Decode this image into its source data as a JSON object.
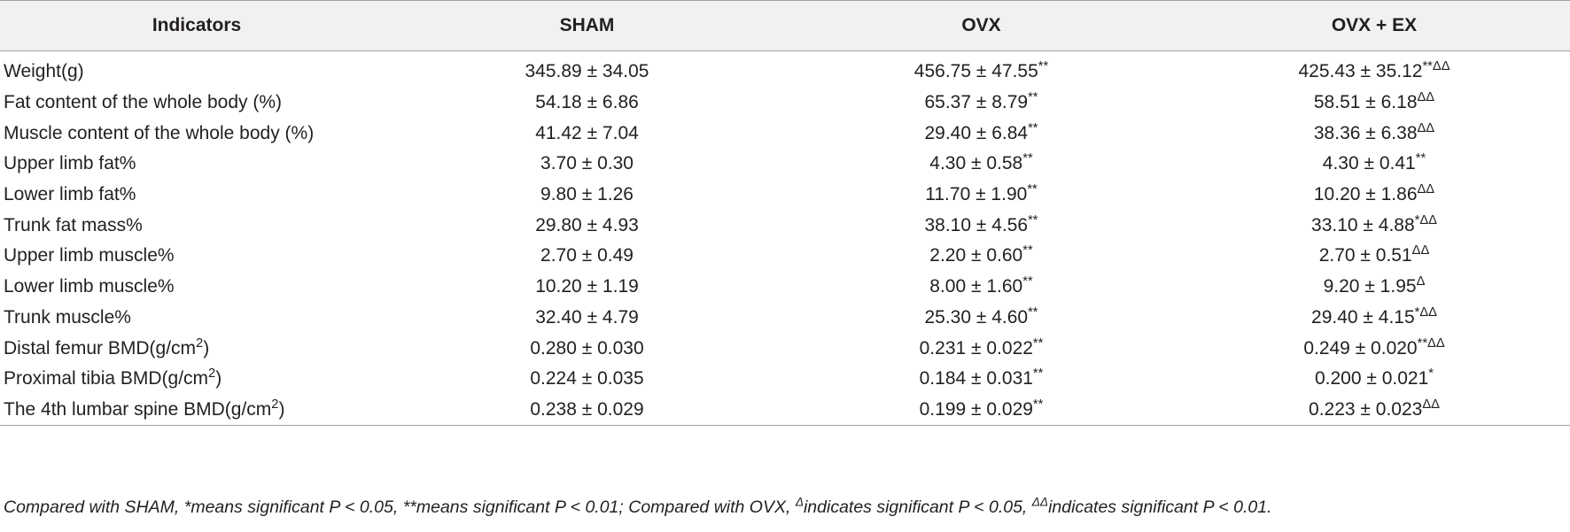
{
  "table": {
    "headers": [
      "Indicators",
      "SHAM",
      "OVX",
      "OVX + EX"
    ],
    "rows": [
      {
        "indicator": "Weight(g)",
        "indicator_sup": "",
        "sham": "345.89 ± 34.05",
        "sham_sup": "",
        "ovx": "456.75 ± 47.55",
        "ovx_sup": "**",
        "ovxex": "425.43 ± 35.12",
        "ovxex_sup": "**ΔΔ"
      },
      {
        "indicator": "Fat content of the whole body (%)",
        "indicator_sup": "",
        "sham": "54.18 ± 6.86",
        "sham_sup": "",
        "ovx": "65.37 ± 8.79",
        "ovx_sup": "**",
        "ovxex": "58.51 ± 6.18",
        "ovxex_sup": "ΔΔ"
      },
      {
        "indicator": "Muscle content of the whole body (%)",
        "indicator_sup": "",
        "sham": "41.42 ± 7.04",
        "sham_sup": "",
        "ovx": "29.40 ± 6.84",
        "ovx_sup": "**",
        "ovxex": "38.36 ± 6.38",
        "ovxex_sup": "ΔΔ"
      },
      {
        "indicator": "Upper limb fat%",
        "indicator_sup": "",
        "sham": "3.70 ± 0.30",
        "sham_sup": "",
        "ovx": "4.30 ± 0.58",
        "ovx_sup": "**",
        "ovxex": "4.30 ± 0.41",
        "ovxex_sup": "**"
      },
      {
        "indicator": "Lower limb fat%",
        "indicator_sup": "",
        "sham": "9.80 ± 1.26",
        "sham_sup": "",
        "ovx": "11.70 ± 1.90",
        "ovx_sup": "**",
        "ovxex": "10.20 ± 1.86",
        "ovxex_sup": "ΔΔ"
      },
      {
        "indicator": "Trunk fat mass%",
        "indicator_sup": "",
        "sham": "29.80 ± 4.93",
        "sham_sup": "",
        "ovx": "38.10 ± 4.56",
        "ovx_sup": "**",
        "ovxex": "33.10 ± 4.88",
        "ovxex_sup": "*ΔΔ"
      },
      {
        "indicator": "Upper limb muscle%",
        "indicator_sup": "",
        "sham": "2.70 ± 0.49",
        "sham_sup": "",
        "ovx": "2.20 ± 0.60",
        "ovx_sup": "**",
        "ovxex": "2.70 ± 0.51",
        "ovxex_sup": "ΔΔ"
      },
      {
        "indicator": "Lower limb muscle%",
        "indicator_sup": "",
        "sham": "10.20 ± 1.19",
        "sham_sup": "",
        "ovx": "8.00 ± 1.60",
        "ovx_sup": "**",
        "ovxex": "9.20 ± 1.95",
        "ovxex_sup": "Δ"
      },
      {
        "indicator": "Trunk muscle%",
        "indicator_sup": "",
        "sham": "32.40 ± 4.79",
        "sham_sup": "",
        "ovx": "25.30 ± 4.60",
        "ovx_sup": "**",
        "ovxex": "29.40 ± 4.15",
        "ovxex_sup": "*ΔΔ"
      },
      {
        "indicator": "Distal femur BMD(g/cm",
        "indicator_sup": "2",
        "indicator_tail": ")",
        "sham": "0.280 ± 0.030",
        "sham_sup": "",
        "ovx": "0.231 ± 0.022",
        "ovx_sup": "**",
        "ovxex": "0.249 ± 0.020",
        "ovxex_sup": "**ΔΔ"
      },
      {
        "indicator": "Proximal tibia BMD(g/cm",
        "indicator_sup": "2",
        "indicator_tail": ")",
        "sham": "0.224 ± 0.035",
        "sham_sup": "",
        "ovx": "0.184 ± 0.031",
        "ovx_sup": "**",
        "ovxex": "0.200 ± 0.021",
        "ovxex_sup": "*"
      },
      {
        "indicator": "The 4th lumbar spine BMD(g/cm",
        "indicator_sup": "2",
        "indicator_tail": ")",
        "sham": "0.238 ± 0.029",
        "sham_sup": "",
        "ovx": "0.199 ± 0.029",
        "ovx_sup": "**",
        "ovxex": "0.223 ± 0.023",
        "ovxex_sup": "ΔΔ"
      }
    ]
  },
  "footnote": {
    "part1": "Compared with SHAM, *means significant P < 0.05, **means significant P < 0.01; Compared with OVX, ",
    "sup1": "Δ",
    "part2": "indicates significant P < 0.05, ",
    "sup2": "ΔΔ",
    "part3": "indicates significant P < 0.01."
  }
}
